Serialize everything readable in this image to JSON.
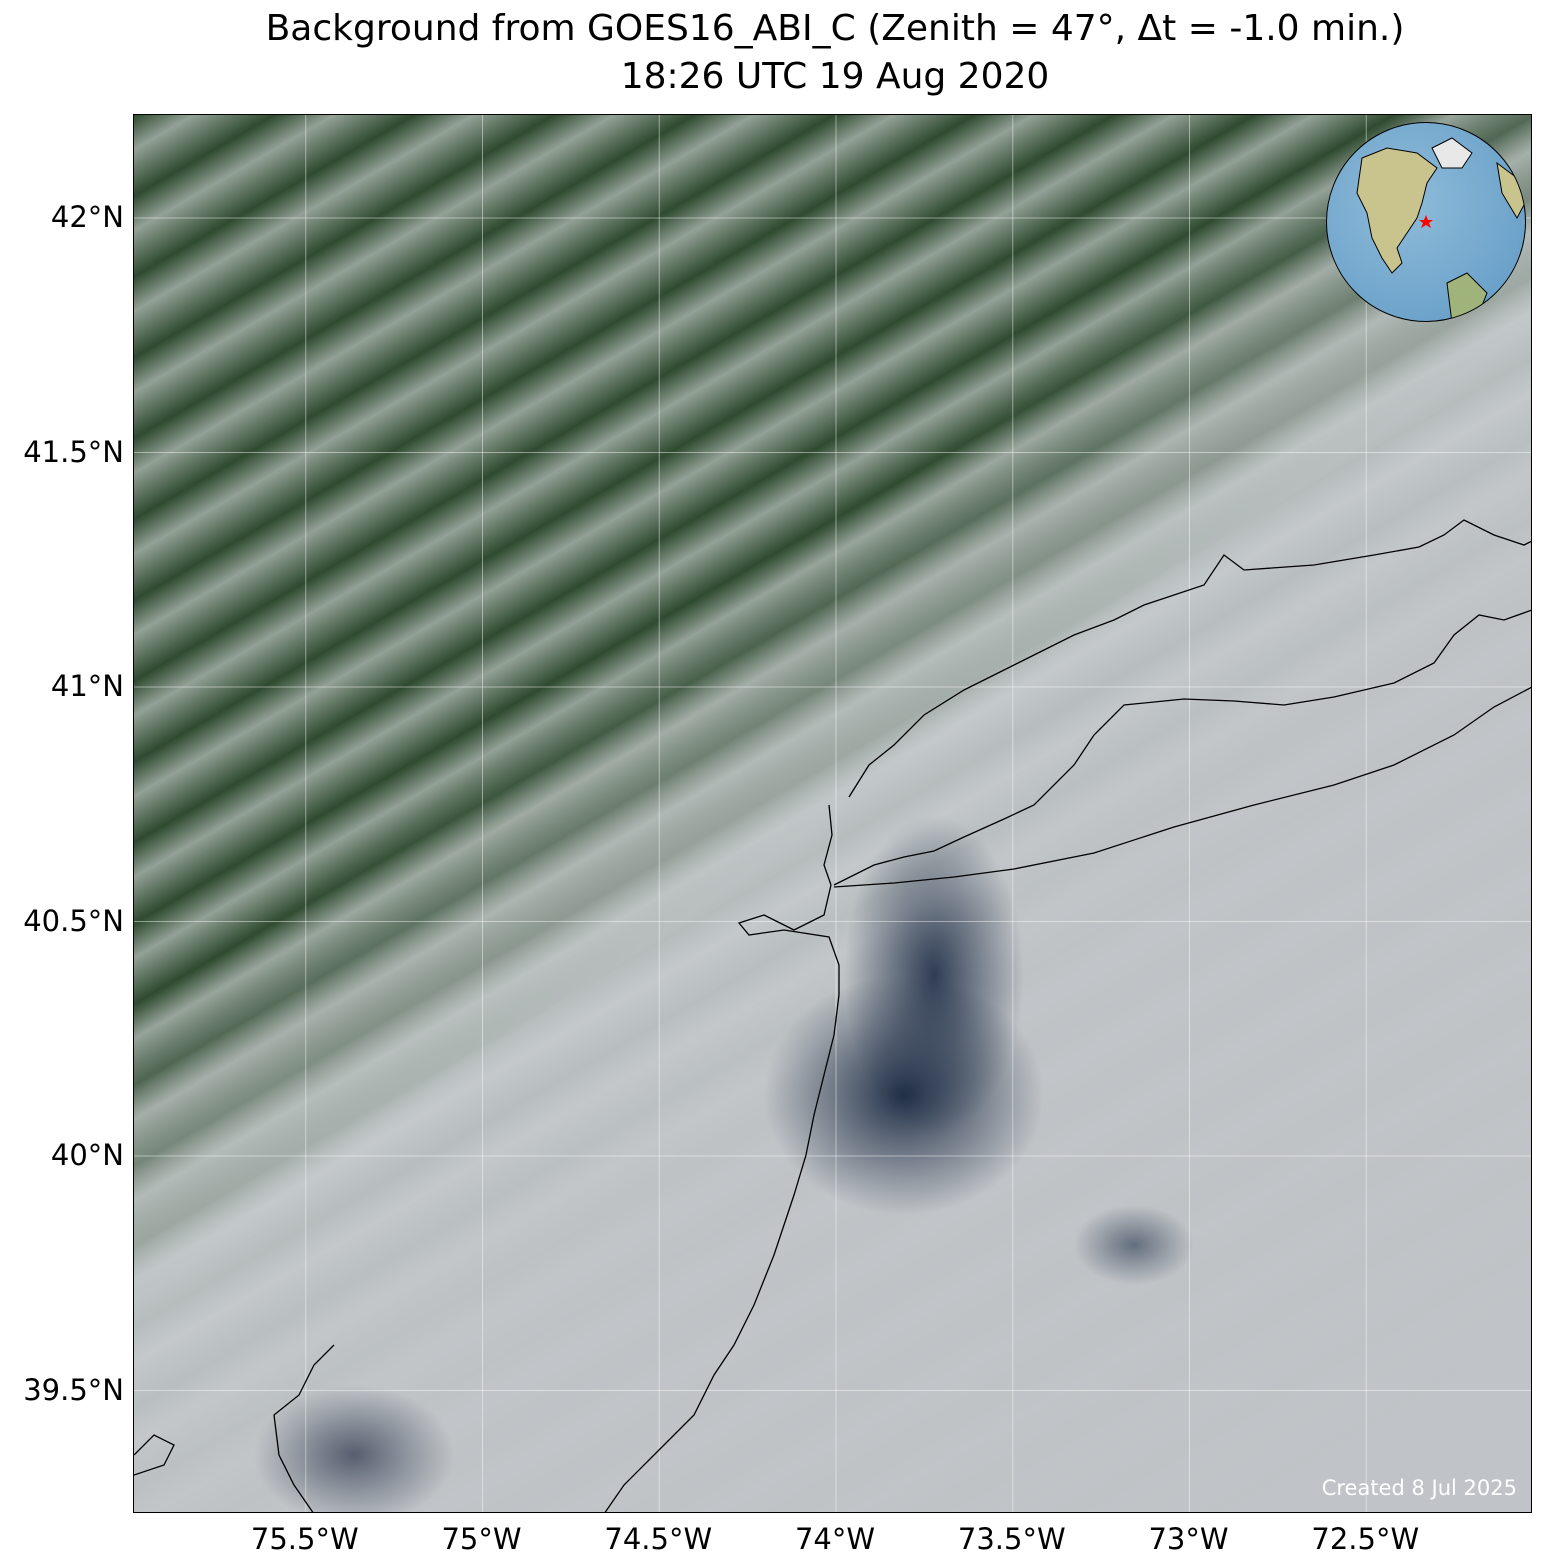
{
  "title": {
    "line1": "Background from GOES16_ABI_C (Zenith = 47$^\\circ$, Δt = -1.0 min.)",
    "line1_display": "Background from GOES16_ABI_C (Zenith = 47°, Δt = -1.0 min.)",
    "line2": "18:26 UTC 19 Aug 2020"
  },
  "map": {
    "longitude_ticks": [
      -75.5,
      -75,
      -74.5,
      -74,
      -73.5,
      -73,
      -72.5
    ],
    "longitude_labels": [
      "75.5°W",
      "75°W",
      "74.5°W",
      "74°W",
      "73.5°W",
      "73°W",
      "72.5°W"
    ],
    "latitude_ticks": [
      42,
      41.5,
      41,
      40.5,
      40,
      39.5
    ],
    "latitude_labels": [
      "42°N",
      "41.5°N",
      "41°N",
      "40.5°N",
      "40°N",
      "39.5°N"
    ],
    "inset": {
      "type": "orthographic globe",
      "marker": "red star",
      "marker_color": "#ff0000"
    },
    "credit": "Created 8 Jul 2025"
  }
}
